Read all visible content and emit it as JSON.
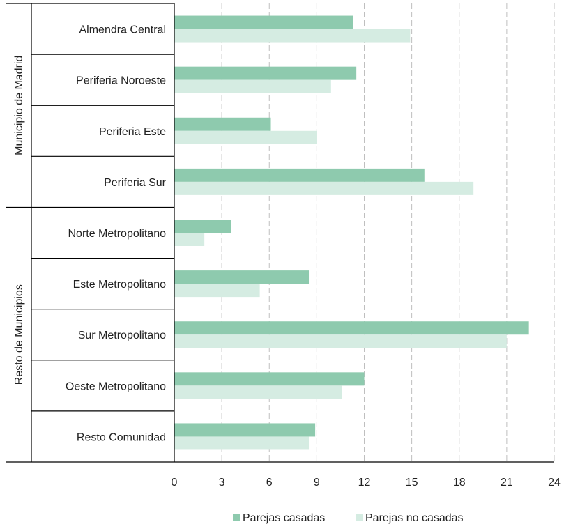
{
  "chart_data": {
    "type": "bar",
    "orientation": "horizontal",
    "groups": [
      {
        "label": "Municipio de Madrid",
        "categories": [
          "Almendra Central",
          "Periferia Noroeste",
          "Periferia Este",
          "Periferia Sur"
        ]
      },
      {
        "label": "Resto de Municipios",
        "categories": [
          "Norte Metropolitano",
          "Este Metropolitano",
          "Sur Metropolitano",
          "Oeste Metropolitano",
          "Resto Comunidad"
        ]
      }
    ],
    "categories": [
      "Almendra Central",
      "Periferia Noroeste",
      "Periferia Este",
      "Periferia Sur",
      "Norte Metropolitano",
      "Este Metropolitano",
      "Sur Metropolitano",
      "Oeste Metropolitano",
      "Resto Comunidad"
    ],
    "series": [
      {
        "name": "Parejas casadas",
        "color": "#8ecaae",
        "values": [
          11.3,
          11.5,
          6.1,
          15.8,
          3.6,
          8.5,
          22.4,
          12.0,
          8.9
        ]
      },
      {
        "name": "Parejas no casadas",
        "color": "#d5ece2",
        "values": [
          14.9,
          9.9,
          9.0,
          18.9,
          1.9,
          5.4,
          21.0,
          10.6,
          8.5
        ]
      }
    ],
    "xlim": [
      0,
      24
    ],
    "xticks": [
      "0",
      "3",
      "6",
      "9",
      "12",
      "15",
      "18",
      "21",
      "24"
    ],
    "grid": "vertical-dashed",
    "legend_position": "bottom",
    "title": "",
    "xlabel": "",
    "ylabel": ""
  }
}
